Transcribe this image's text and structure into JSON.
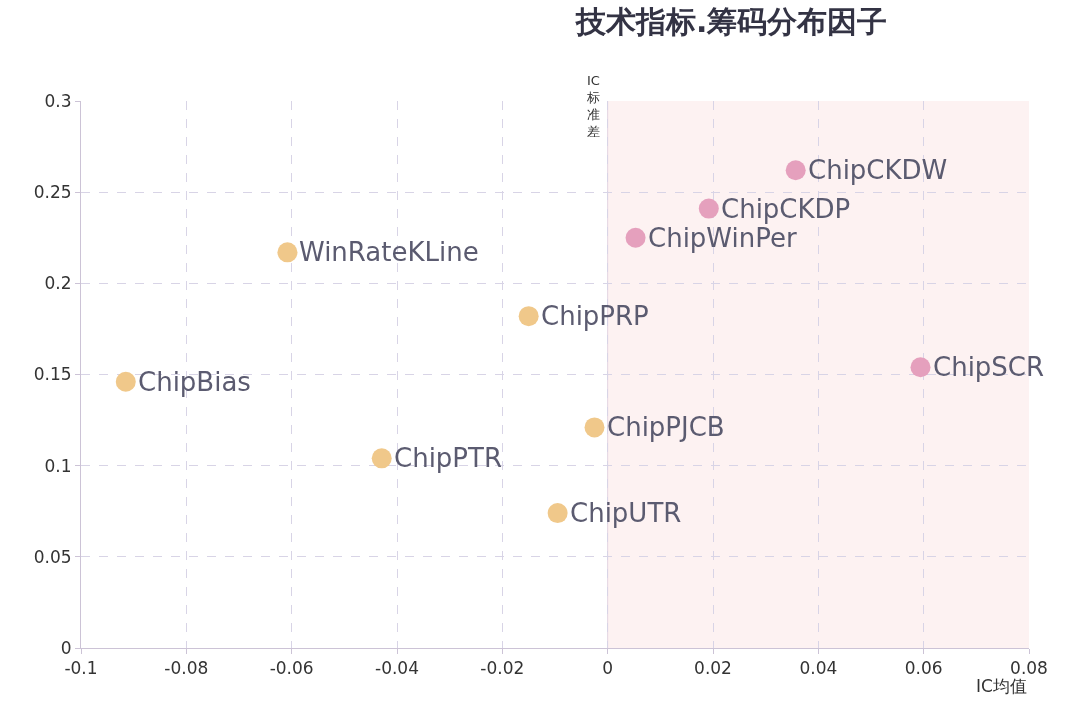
{
  "chart_data": {
    "type": "scatter",
    "title": "技术指标.筹码分布因子",
    "xlabel": "IC均值",
    "ylabel": "IC标准差",
    "xlim": [
      -0.1,
      0.08
    ],
    "xticks": [
      -0.1,
      -0.08,
      -0.06,
      -0.04,
      -0.02,
      0,
      0.02,
      0.04,
      0.06,
      0.08
    ],
    "ylim": [
      0,
      0.3
    ],
    "yticks": [
      0,
      0.05,
      0.1,
      0.15,
      0.2,
      0.25,
      0.3
    ],
    "grid": true,
    "marker": "circle",
    "bands": [
      {
        "axis": "x",
        "from": 0,
        "to": 0.08,
        "color": "#fdf2f2"
      }
    ],
    "series": [
      {
        "color": "#f0c88a",
        "x": [
          -0.0608,
          -0.015,
          -0.0915,
          -0.0025,
          -0.0429,
          -0.0095
        ],
        "values": [
          0.217,
          0.182,
          0.146,
          0.121,
          0.104,
          0.074
        ]
      },
      {
        "color": "#e5a0bd",
        "x": [
          0.0357,
          0.0192,
          0.0053,
          0.0594
        ],
        "values": [
          0.262,
          0.241,
          0.225,
          0.154
        ]
      }
    ],
    "annotations": [
      {
        "text": "WinRateKLine",
        "x": -0.0608,
        "y": 0.217
      },
      {
        "text": "ChipPRP",
        "x": -0.015,
        "y": 0.182
      },
      {
        "text": "ChipBias",
        "x": -0.0915,
        "y": 0.146
      },
      {
        "text": "ChipPJCB",
        "x": -0.0025,
        "y": 0.121
      },
      {
        "text": "ChipPTR",
        "x": -0.0429,
        "y": 0.104
      },
      {
        "text": "ChipUTR",
        "x": -0.0095,
        "y": 0.074
      },
      {
        "text": "ChipCKDW",
        "x": 0.0357,
        "y": 0.262
      },
      {
        "text": "ChipCKDP",
        "x": 0.0192,
        "y": 0.241
      },
      {
        "text": "ChipWinPer",
        "x": 0.0053,
        "y": 0.225
      },
      {
        "text": "ChipSCR",
        "x": 0.0594,
        "y": 0.154
      }
    ]
  }
}
